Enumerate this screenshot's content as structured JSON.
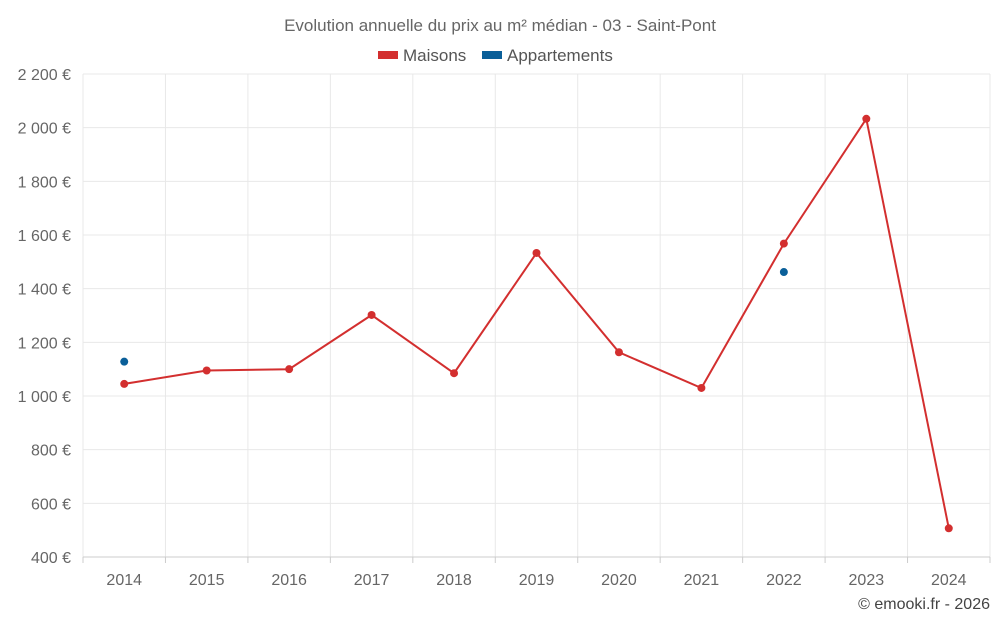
{
  "chart_data": {
    "type": "line",
    "title": "Evolution annuelle du prix au m² médian - 03 - Saint-Pont",
    "categories": [
      "2014",
      "2015",
      "2016",
      "2017",
      "2018",
      "2019",
      "2020",
      "2021",
      "2022",
      "2023",
      "2024"
    ],
    "series": [
      {
        "name": "Maisons",
        "color": "#d32f2f",
        "values": [
          1045,
          1095,
          1100,
          1302,
          1085,
          1533,
          1163,
          1030,
          1568,
          2033,
          507
        ]
      },
      {
        "name": "Appartements",
        "color": "#0a5f99",
        "values": [
          1128,
          null,
          null,
          null,
          null,
          null,
          null,
          null,
          1462,
          null,
          null
        ]
      }
    ],
    "y_ticks": [
      "400 €",
      "600 €",
      "800 €",
      "1 000 €",
      "1 200 €",
      "1 400 €",
      "1 600 €",
      "1 800 €",
      "2 000 €",
      "2 200 €"
    ],
    "ylim": [
      400,
      2200
    ],
    "grid": true,
    "legend_position": "top-center"
  },
  "credit": "© emooki.fr - 2026"
}
